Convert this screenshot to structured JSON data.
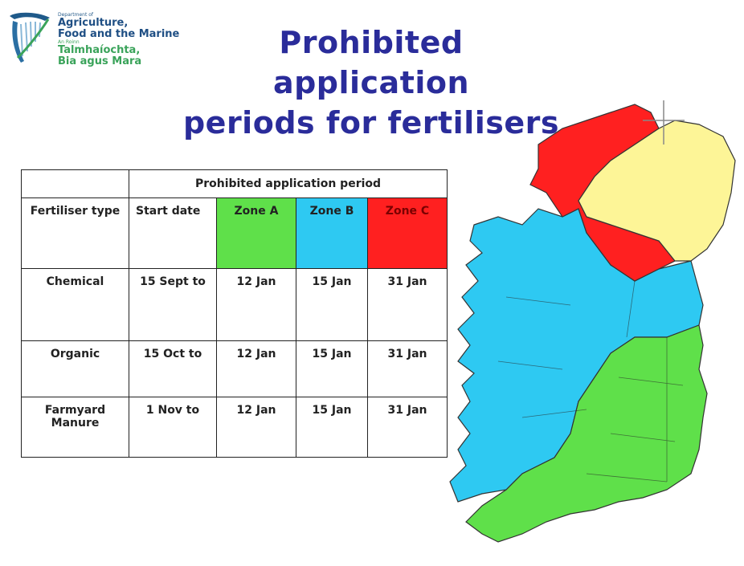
{
  "logo": {
    "line1": "Department of",
    "line2": "Agriculture,",
    "line3": "Food and the Marine",
    "line4": "An Roinn",
    "line5": "Talmhaíochta,",
    "line6": "Bia agus Mara"
  },
  "title": {
    "line1": "Prohibited application",
    "line2": "periods for fertilisers"
  },
  "table": {
    "group_header": "Prohibited application period",
    "headers": {
      "type": "Fertiliser type",
      "start": "Start date",
      "zone_a": "Zone A",
      "zone_b": "Zone B",
      "zone_c": "Zone C"
    },
    "rows": [
      {
        "type": "Chemical",
        "start": "15 Sept to",
        "a": "12 Jan",
        "b": "15 Jan",
        "c": "31 Jan"
      },
      {
        "type": "Organic",
        "start": "15 Oct to",
        "a": "12 Jan",
        "b": "15 Jan",
        "c": "31 Jan"
      },
      {
        "type": "Farmyard Manure",
        "start": "1 Nov to",
        "a": "12 Jan",
        "b": "15 Jan",
        "c": "31 Jan"
      }
    ]
  },
  "colors": {
    "zone_a": "#5fe04a",
    "zone_b": "#2ec9f2",
    "zone_c": "#ff2020",
    "northern_ireland": "#fdf597",
    "title": "#2a2c9a"
  }
}
